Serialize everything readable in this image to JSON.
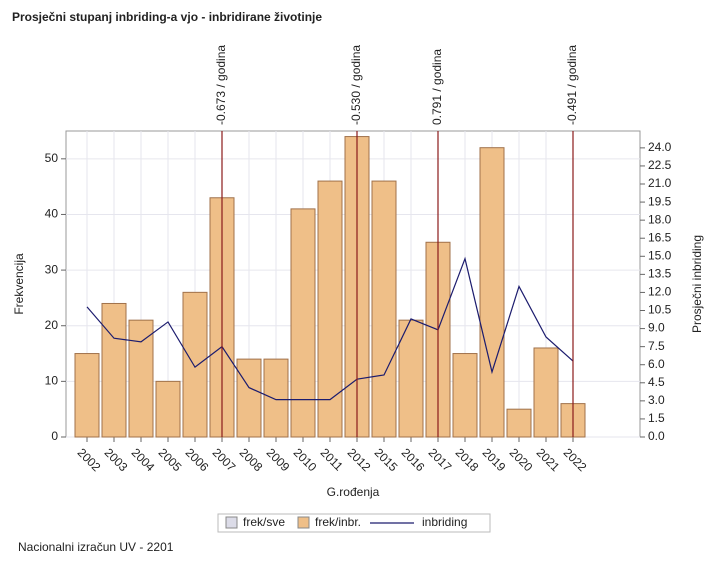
{
  "chart_data": {
    "type": "bar",
    "title": "Prosječni stupanj inbriding-a vjo - inbridirane životinje",
    "footer": "Nacionalni izračun UV - 2201",
    "x_label": "G.rođenja",
    "y_label": "Frekvencija",
    "y2_label": "Prosječni inbriding",
    "categories": [
      "2002",
      "2003",
      "2004",
      "2005",
      "2006",
      "2007",
      "2008",
      "2009",
      "2010",
      "2011",
      "2012",
      "2015",
      "2016",
      "2017",
      "2018",
      "2019",
      "2020",
      "2021",
      "2022"
    ],
    "series": [
      {
        "name": "frek/sve",
        "type": "bar",
        "color": "#dcdce8",
        "values": [
          null,
          null,
          null,
          null,
          null,
          null,
          null,
          null,
          null,
          null,
          null,
          null,
          null,
          null,
          null,
          null,
          null,
          null,
          null
        ]
      },
      {
        "name": "frek/inbr.",
        "type": "bar",
        "color": "#efbf88",
        "values": [
          15,
          24,
          21,
          10,
          26,
          43,
          14,
          14,
          41,
          46,
          54,
          46,
          21,
          35,
          15,
          52,
          5,
          16,
          6
        ]
      },
      {
        "name": "inbriding",
        "type": "line",
        "axis": "y2",
        "color": "#1c1c6e",
        "values": [
          10.8,
          8.2,
          7.9,
          9.55,
          5.8,
          7.5,
          4.1,
          3.1,
          3.1,
          3.1,
          4.8,
          5.15,
          9.8,
          8.9,
          14.8,
          5.4,
          12.5,
          8.3,
          6.3
        ]
      }
    ],
    "reference_lines": [
      {
        "category": "2007",
        "label": "-0.673 / godina"
      },
      {
        "category": "2012",
        "label": "-0.530 / godina"
      },
      {
        "category": "2017",
        "label": "0.791 / godina"
      },
      {
        "category": "2022",
        "label": "-0.491 / godina"
      }
    ],
    "ylim": [
      0,
      55
    ],
    "yticks": [
      0,
      10,
      20,
      30,
      40,
      50
    ],
    "y2lim": [
      0,
      25.4
    ],
    "y2ticks": [
      {
        "value": 0,
        "label": "0.0"
      },
      1.5,
      {
        "value": 3,
        "label": "3.0"
      },
      4.5,
      {
        "value": 6,
        "label": "6.0"
      },
      7.5,
      {
        "value": 9,
        "label": "9.0"
      },
      10.5,
      {
        "value": 12,
        "label": "12.0"
      },
      13.5,
      {
        "value": 15,
        "label": "15.0"
      },
      16.5,
      {
        "value": 18,
        "label": "18.0"
      },
      19.5,
      {
        "value": 21,
        "label": "21.0"
      },
      22.5,
      {
        "value": 24,
        "label": "24.0"
      }
    ],
    "grid": true
  }
}
